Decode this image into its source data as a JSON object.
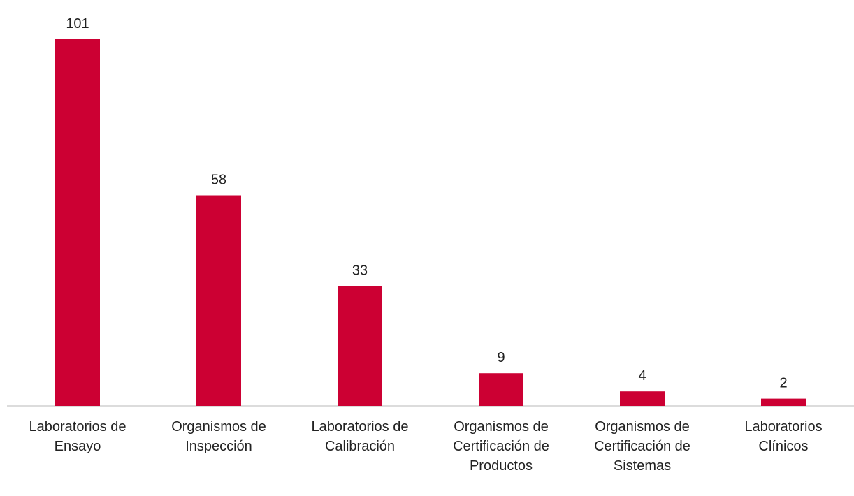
{
  "chart_data": {
    "type": "bar",
    "categories": [
      "Laboratorios de Ensayo",
      "Organismos de Inspección",
      "Laboratorios de Calibración",
      "Organismos de Certificación de Productos",
      "Organismos de Certificación de Sistemas",
      "Laboratorios Clínicos"
    ],
    "values": [
      101,
      58,
      33,
      9,
      4,
      2
    ],
    "color": "#cc0033"
  }
}
